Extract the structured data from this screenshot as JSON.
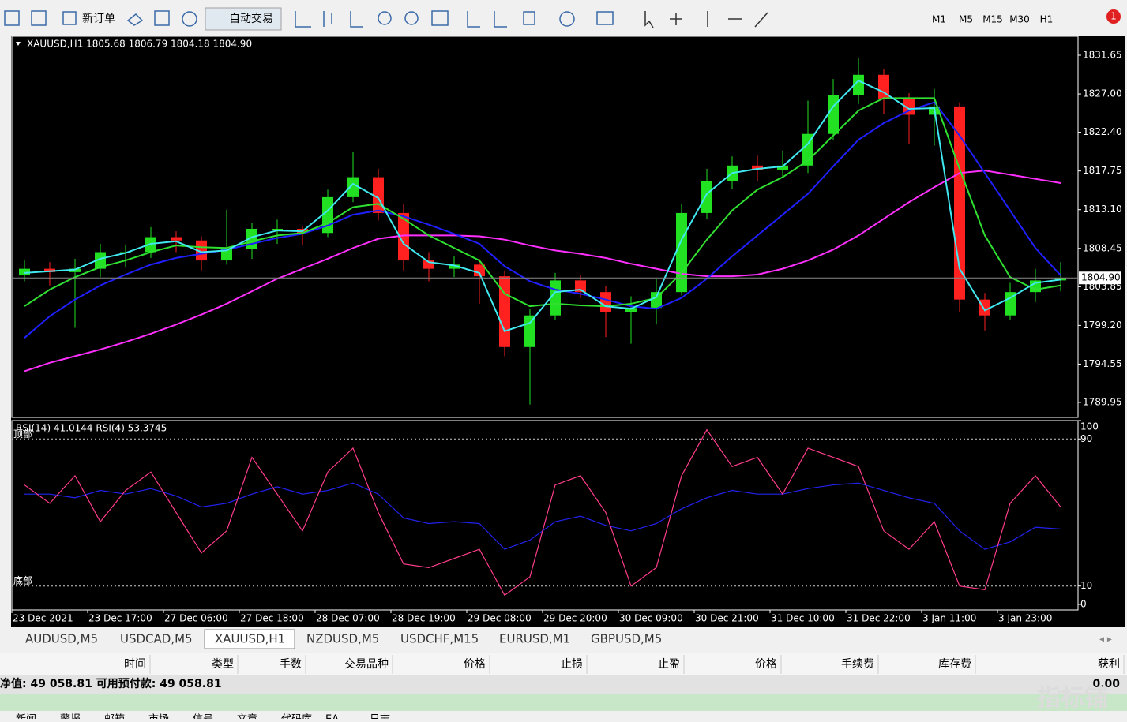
{
  "toolbar": {
    "new_order": "新订单",
    "auto_trading": "自动交易",
    "timeframes": [
      "M1",
      "M5",
      "M15",
      "M30",
      "H1"
    ],
    "alert_count": "1"
  },
  "chart_data": [
    {
      "type": "candlestick",
      "info": "XAUUSD,H1  1805.68 1806.79 1804.18 1804.90",
      "categories": [
        "23 Dec 2021",
        null,
        null,
        "23 Dec 17:00",
        null,
        null,
        "27 Dec 06:00",
        null,
        null,
        "27 Dec 18:00",
        null,
        null,
        "28 Dec 07:00",
        null,
        null,
        "28 Dec 19:00",
        null,
        null,
        "29 Dec 08:00",
        null,
        null,
        "29 Dec 20:00",
        null,
        null,
        "30 Dec 09:00",
        null,
        null,
        "30 Dec 21:00",
        null,
        null,
        "31 Dec 10:00",
        null,
        null,
        "31 Dec 22:00",
        null,
        null,
        "3 Jan 11:00",
        null,
        null,
        "3 Jan 23:00",
        null,
        null
      ],
      "open": [
        1805.2,
        1806.0,
        1805.6,
        1806.0,
        1808.0,
        1808.0,
        1809.8,
        1809.4,
        1807.0,
        1808.4,
        1810.8,
        1810.8,
        1810.3,
        1814.6,
        1817.0,
        1812.7,
        1807.0,
        1806.0,
        1806.5,
        1805.1,
        1796.6,
        1800.4,
        1804.6,
        1803.2,
        1800.8,
        1801.3,
        1803.2,
        1812.7,
        1816.5,
        1818.4,
        1817.9,
        1818.4,
        1822.2,
        1826.9,
        1829.3,
        1826.4,
        1824.5,
        1825.5,
        1802.3,
        1800.4,
        1803.2,
        1804.6
      ],
      "high": [
        1807.0,
        1806.8,
        1807.2,
        1809.0,
        1808.9,
        1811.0,
        1810.5,
        1809.9,
        1813.1,
        1811.5,
        1811.9,
        1811.2,
        1815.5,
        1820.0,
        1818.0,
        1813.8,
        1808.0,
        1807.5,
        1807.2,
        1805.8,
        1801.2,
        1805.5,
        1805.3,
        1803.9,
        1802.7,
        1804.8,
        1813.8,
        1818.0,
        1819.5,
        1819.6,
        1820.2,
        1826.2,
        1828.8,
        1831.3,
        1830.0,
        1827.1,
        1827.6,
        1826.0,
        1803.1,
        1804.3,
        1806.0,
        1806.8
      ],
      "low": [
        1804.5,
        1804.0,
        1798.9,
        1805.0,
        1806.2,
        1807.3,
        1808.0,
        1805.8,
        1806.5,
        1807.2,
        1809.0,
        1808.9,
        1809.8,
        1814.0,
        1811.8,
        1805.8,
        1804.5,
        1805.0,
        1801.8,
        1795.5,
        1789.7,
        1799.8,
        1802.5,
        1797.8,
        1797.0,
        1799.3,
        1802.8,
        1812.0,
        1815.6,
        1816.5,
        1816.9,
        1817.5,
        1821.5,
        1825.8,
        1824.6,
        1821.0,
        1820.8,
        1800.8,
        1798.6,
        1799.8,
        1802.0,
        1803.3
      ],
      "close": [
        1806.0,
        1805.6,
        1806.0,
        1808.0,
        1808.0,
        1809.8,
        1809.4,
        1807.0,
        1808.4,
        1810.8,
        1810.8,
        1810.3,
        1814.6,
        1817.0,
        1812.7,
        1807.0,
        1806.0,
        1806.5,
        1805.1,
        1796.6,
        1800.4,
        1804.6,
        1803.2,
        1800.8,
        1801.3,
        1803.2,
        1812.7,
        1816.5,
        1818.4,
        1817.9,
        1818.4,
        1822.2,
        1826.9,
        1829.3,
        1826.4,
        1824.5,
        1825.5,
        1802.3,
        1800.4,
        1803.2,
        1804.6,
        1804.9
      ],
      "up_color": "#22e022",
      "down_color": "#ff2020",
      "series": [
        {
          "color": "#ff30ff",
          "values": [
            1793.7,
            1794.7,
            1795.5,
            1796.3,
            1797.2,
            1798.2,
            1799.3,
            1800.5,
            1801.8,
            1803.3,
            1804.8,
            1806.0,
            1807.2,
            1808.5,
            1809.6,
            1810.0,
            1810.0,
            1810.0,
            1809.9,
            1809.5,
            1808.8,
            1808.2,
            1807.8,
            1807.3,
            1806.6,
            1806.0,
            1805.4,
            1805.1,
            1805.1,
            1805.3,
            1806.0,
            1807.0,
            1808.3,
            1810.0,
            1812.0,
            1814.0,
            1815.8,
            1817.5,
            1817.8,
            1817.3,
            1816.8,
            1816.3
          ]
        },
        {
          "color": "#2020ff",
          "values": [
            1797.7,
            1800.3,
            1802.3,
            1804.0,
            1805.3,
            1806.5,
            1807.3,
            1807.8,
            1808.3,
            1809.0,
            1809.7,
            1810.2,
            1811.2,
            1812.5,
            1813.0,
            1812.3,
            1811.3,
            1810.2,
            1809.0,
            1806.3,
            1804.5,
            1803.5,
            1803.0,
            1802.3,
            1801.5,
            1801.2,
            1802.5,
            1804.8,
            1807.5,
            1810.0,
            1812.5,
            1815.0,
            1818.3,
            1821.5,
            1823.5,
            1825.0,
            1826.0,
            1822.0,
            1817.5,
            1813.0,
            1808.5,
            1805.2
          ]
        },
        {
          "color": "#30e030",
          "values": [
            1801.5,
            1803.5,
            1805.0,
            1806.2,
            1807.0,
            1808.0,
            1808.8,
            1808.6,
            1808.5,
            1809.3,
            1810.0,
            1810.3,
            1811.5,
            1813.4,
            1813.8,
            1812.0,
            1810.0,
            1808.5,
            1807.0,
            1803.0,
            1801.5,
            1801.8,
            1801.6,
            1801.5,
            1801.8,
            1802.5,
            1805.5,
            1809.5,
            1813.0,
            1815.5,
            1817.0,
            1819.0,
            1822.0,
            1825.0,
            1826.5,
            1826.5,
            1826.5,
            1818.0,
            1810.0,
            1805.0,
            1803.5,
            1804.0
          ]
        },
        {
          "color": "#40e8f0",
          "values": [
            1805.5,
            1805.7,
            1805.9,
            1807.2,
            1807.9,
            1809.0,
            1809.3,
            1808.0,
            1808.2,
            1809.8,
            1810.6,
            1810.5,
            1813.0,
            1816.2,
            1814.5,
            1809.0,
            1806.8,
            1806.4,
            1805.5,
            1798.5,
            1799.5,
            1803.2,
            1803.5,
            1801.5,
            1801.2,
            1802.6,
            1809.5,
            1815.0,
            1817.5,
            1818.0,
            1818.3,
            1821.0,
            1825.5,
            1828.6,
            1827.2,
            1825.2,
            1825.3,
            1806.0,
            1801.0,
            1802.5,
            1804.3,
            1804.7
          ]
        }
      ],
      "ylim": [
        1788.24,
        1833.83
      ],
      "yticks": [
        1831.65,
        {
          "value": 1827,
          "label": "1827.00"
        },
        {
          "value": 1822.4,
          "label": "1822.40"
        },
        1817.75,
        {
          "value": 1813.1,
          "label": "1813.10"
        },
        1808.45,
        1803.85,
        {
          "value": 1799.2,
          "label": "1799.20"
        },
        1794.55,
        1789.95
      ],
      "current_price": {
        "value": 1804.9,
        "label": "1804.90"
      }
    },
    {
      "type": "line",
      "title": "RSI(14) 41.0144  RSI(4) 53.3745",
      "series": [
        {
          "color": "#2222ee",
          "values": [
            60,
            60,
            58,
            62,
            60,
            63,
            59,
            53,
            55,
            60,
            64,
            60,
            62,
            66,
            60,
            47,
            44,
            45,
            44,
            30,
            35,
            45,
            48,
            43,
            40,
            44,
            52,
            58,
            62,
            60,
            60,
            63,
            65,
            66,
            62,
            58,
            55,
            40,
            30,
            34,
            42,
            41
          ]
        },
        {
          "color": "#ff3d8b",
          "values": [
            65,
            55,
            70,
            45,
            62,
            72,
            50,
            28,
            40,
            80,
            60,
            40,
            72,
            85,
            50,
            22,
            20,
            25,
            30,
            5,
            15,
            65,
            70,
            50,
            10,
            20,
            70,
            95,
            75,
            80,
            60,
            85,
            80,
            75,
            40,
            30,
            45,
            10,
            8,
            55,
            70,
            53
          ]
        }
      ],
      "ylim": [
        0,
        100
      ],
      "yticks": [
        100,
        90,
        10,
        0
      ],
      "levels": [
        {
          "value": 90,
          "label": "顶部"
        },
        {
          "value": 10,
          "label": "底部"
        }
      ]
    }
  ],
  "tabs": [
    "AUDUSD,M5",
    "USDCAD,M5",
    "XAUUSD,H1",
    "NZDUSD,M5",
    "USDCHF,M15",
    "EURUSD,M1",
    "GBPUSD,M5"
  ],
  "terminal": {
    "columns": [
      "时间",
      "类型",
      "手数",
      "交易品种",
      "价格",
      "止损",
      "止盈",
      "价格",
      "手续费",
      "库存费",
      "获利"
    ],
    "balance": "净值: 49 058.81  可用预付款: 49 058.81",
    "profit": "0.00",
    "tabs": [
      "新闻",
      "警报",
      "邮箱",
      "市场",
      "信号",
      "文章",
      "代码库",
      "EA",
      "日志"
    ]
  },
  "watermark": "指标铺"
}
